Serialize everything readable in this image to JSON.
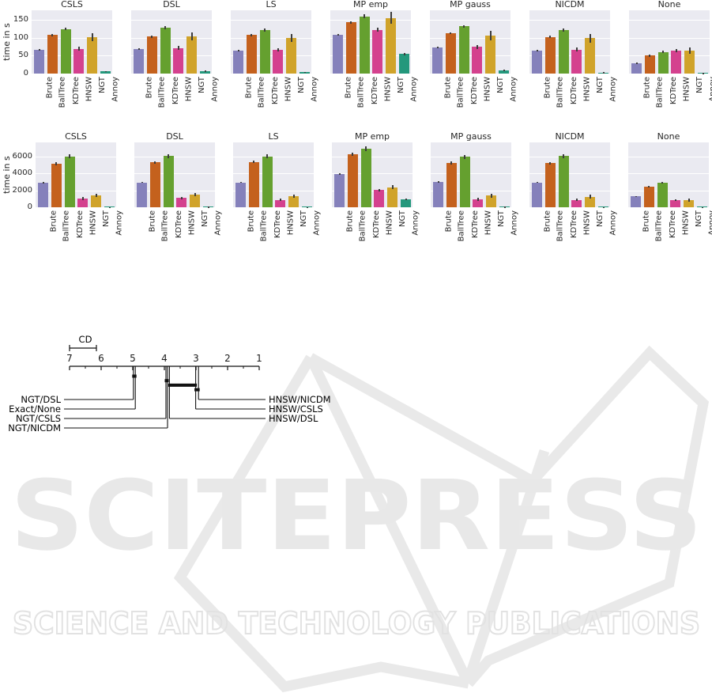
{
  "watermark": {
    "line1": "SCITEPRESS",
    "line2": "SCIENCE AND TECHNOLOGY PUBLICATIONS",
    "color": "#e8e8e8"
  },
  "colors": {
    "plot_bg": "#eaeaf1",
    "grid": "#ffffff",
    "error_bar": "#3d3d3d",
    "text": "#262626",
    "bars": {
      "Brute": "#8581bb",
      "BallTree": "#c4611d",
      "KDTree": "#65a02f",
      "HNSW": "#d4418e",
      "NGT": "#d0a32a",
      "Annoy": "#24987c"
    }
  },
  "chart_data": [
    {
      "type": "bar",
      "row": 1,
      "ylabel": "time in s",
      "yticks": [
        0,
        50,
        100,
        150
      ],
      "ylim": [
        0,
        176
      ],
      "grid": true,
      "categories": [
        "Brute",
        "BallTree",
        "KDTree",
        "HNSW",
        "NGT",
        "Annoy"
      ],
      "panels": [
        {
          "title": "CSLS",
          "values": [
            66,
            107,
            124,
            69,
            102,
            6
          ],
          "errors": [
            2,
            3,
            4,
            6,
            11,
            1
          ]
        },
        {
          "title": "DSL",
          "values": [
            69,
            103,
            128,
            71,
            104,
            7
          ],
          "errors": [
            2,
            3,
            4,
            6,
            11,
            1
          ]
        },
        {
          "title": "LS",
          "values": [
            64,
            107,
            121,
            66,
            98,
            4
          ],
          "errors": [
            2,
            3,
            4,
            5,
            11,
            1
          ]
        },
        {
          "title": "MP emp",
          "values": [
            107,
            142,
            159,
            122,
            155,
            54
          ],
          "errors": [
            2,
            4,
            5,
            5,
            17,
            3
          ]
        },
        {
          "title": "MP gauss",
          "values": [
            72,
            112,
            131,
            74,
            105,
            9
          ],
          "errors": [
            2,
            3,
            4,
            5,
            13,
            1
          ]
        },
        {
          "title": "NICDM",
          "values": [
            64,
            102,
            121,
            67,
            98,
            3
          ],
          "errors": [
            2,
            3,
            4,
            5,
            13,
            1
          ]
        },
        {
          "title": "None",
          "values": [
            29,
            50,
            60,
            64,
            64,
            1
          ],
          "errors": [
            2,
            3,
            3,
            4,
            9,
            0.5
          ]
        }
      ]
    },
    {
      "type": "bar",
      "row": 2,
      "ylabel": "time in s",
      "yticks": [
        0,
        2000,
        4000,
        6000
      ],
      "ylim": [
        0,
        7650
      ],
      "grid": true,
      "categories": [
        "Brute",
        "BallTree",
        "KDTree",
        "HNSW",
        "NGT",
        "Annoy"
      ],
      "panels": [
        {
          "title": "CSLS",
          "values": [
            2900,
            5150,
            6000,
            1030,
            1400,
            30
          ],
          "errors": [
            70,
            160,
            260,
            150,
            190,
            10
          ]
        },
        {
          "title": "DSL",
          "values": [
            2940,
            5280,
            6030,
            1090,
            1470,
            60
          ],
          "errors": [
            70,
            160,
            260,
            150,
            200,
            15
          ]
        },
        {
          "title": "LS",
          "values": [
            2940,
            5340,
            6000,
            875,
            1310,
            20
          ],
          "errors": [
            70,
            160,
            260,
            130,
            190,
            8
          ]
        },
        {
          "title": "MP emp",
          "values": [
            3900,
            6220,
            6900,
            2030,
            2370,
            940
          ],
          "errors": [
            90,
            190,
            260,
            160,
            260,
            60
          ]
        },
        {
          "title": "MP gauss",
          "values": [
            3000,
            5220,
            5940,
            940,
            1375,
            50
          ],
          "errors": [
            70,
            160,
            260,
            150,
            230,
            12
          ]
        },
        {
          "title": "NICDM",
          "values": [
            2940,
            5190,
            6030,
            875,
            1250,
            20
          ],
          "errors": [
            70,
            160,
            260,
            140,
            230,
            8
          ]
        },
        {
          "title": "None",
          "values": [
            1280,
            2400,
            2900,
            840,
            840,
            20
          ],
          "errors": [
            60,
            110,
            130,
            110,
            170,
            8
          ]
        }
      ]
    },
    {
      "type": "cd-diagram",
      "cd_label": "CD",
      "cd_width_ranks": 0.85,
      "axis_ticks": [
        7,
        6,
        5,
        4,
        3,
        2,
        1
      ],
      "axis_range": [
        7,
        1
      ],
      "methods_left": [
        {
          "label": "NGT/DSL",
          "rank": 4.98
        },
        {
          "label": "Exact/None",
          "rank": 4.92
        },
        {
          "label": "NGT/CSLS",
          "rank": 3.95
        },
        {
          "label": "NGT/NICDM",
          "rank": 3.9
        }
      ],
      "methods_right": [
        {
          "label": "HNSW/NICDM",
          "rank": 2.92
        },
        {
          "label": "HNSW/CSLS",
          "rank": 3.01
        },
        {
          "label": "HNSW/DSL",
          "rank": 3.84
        }
      ],
      "cliques": [
        [
          4.98,
          4.92
        ],
        [
          3.95,
          3.9
        ],
        [
          3.84,
          3.01
        ],
        [
          3.01,
          2.92
        ]
      ]
    }
  ]
}
